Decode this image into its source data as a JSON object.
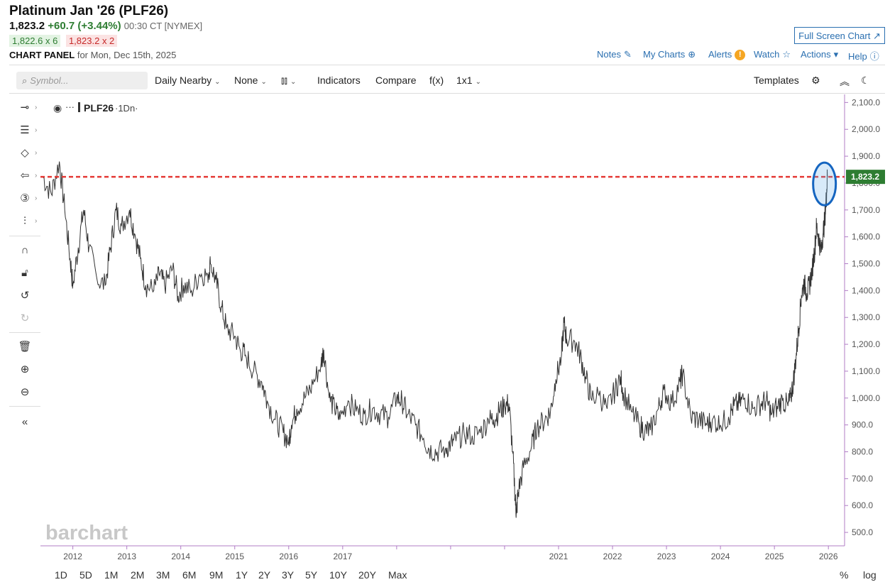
{
  "header": {
    "title": "Platinum Jan '26 (PLF26)",
    "last": "1,823.2",
    "change": "+60.7 (+3.44%)",
    "time": "00:30 CT [NYMEX]",
    "bid": "1,822.6 x 6",
    "ask": "1,823.2 x 2",
    "panel_label": "CHART PANEL",
    "panel_date": "for Mon, Dec 15th, 2025",
    "fullscreen_label": "Full Screen Chart"
  },
  "topnav": {
    "notes": "Notes",
    "mycharts": "My Charts",
    "alerts": "Alerts",
    "alert_badge": "!",
    "watch": "Watch",
    "actions": "Actions",
    "help": "Help"
  },
  "toolbar": {
    "search_placeholder": "Symbol...",
    "period": "Daily Nearby",
    "overlay": "None",
    "indicators": "Indicators",
    "compare": "Compare",
    "fx": "f(x)",
    "layout": "1x1",
    "templates": "Templates"
  },
  "legend": {
    "symbol": "PLF26",
    "interval": "·1Dn·"
  },
  "watermark": "barchart",
  "ranges": [
    "1D",
    "5D",
    "1M",
    "2M",
    "3M",
    "6M",
    "9M",
    "1Y",
    "2Y",
    "3Y",
    "5Y",
    "10Y",
    "20Y",
    "Max"
  ],
  "scale_opts": {
    "percent": "%",
    "log": "log"
  },
  "colors": {
    "accent": "#2a6fb0",
    "up": "#2e7d32",
    "down": "#c62828",
    "price_line": "#e53935",
    "highlight": "#1565c0",
    "series": "#333333"
  },
  "chart_data": {
    "type": "line",
    "title": "",
    "xlabel": "",
    "ylabel": "",
    "x_ticks": [
      "2012",
      "2013",
      "2014",
      "2015",
      "2016",
      "2017",
      "",
      "",
      "",
      "2021",
      "2022",
      "2023",
      "2024",
      "2025",
      "2026"
    ],
    "y_ticks": [
      "2,100.0",
      "2,000.0",
      "1,900.0",
      "1,800.0",
      "1,700.0",
      "1,600.0",
      "1,500.0",
      "1,400.0",
      "1,300.0",
      "1,200.0",
      "1,100.0",
      "1,000.0",
      "900.0",
      "800.0",
      "700.0",
      "600.0",
      "500.0"
    ],
    "ylim": [
      450,
      2130
    ],
    "xlim": [
      2011.4,
      2026.3
    ],
    "last_price": 1823.2,
    "last_price_label": "1,823.2",
    "series": [
      {
        "name": "PLF26",
        "points": [
          [
            2011.45,
            1820
          ],
          [
            2011.6,
            1760
          ],
          [
            2011.75,
            1880
          ],
          [
            2011.85,
            1700
          ],
          [
            2011.95,
            1520
          ],
          [
            2012.0,
            1420
          ],
          [
            2012.1,
            1560
          ],
          [
            2012.2,
            1700
          ],
          [
            2012.3,
            1560
          ],
          [
            2012.45,
            1440
          ],
          [
            2012.6,
            1420
          ],
          [
            2012.7,
            1560
          ],
          [
            2012.8,
            1700
          ],
          [
            2012.9,
            1640
          ],
          [
            2013.05,
            1700
          ],
          [
            2013.15,
            1610
          ],
          [
            2013.25,
            1520
          ],
          [
            2013.35,
            1420
          ],
          [
            2013.5,
            1400
          ],
          [
            2013.6,
            1460
          ],
          [
            2013.7,
            1420
          ],
          [
            2013.85,
            1480
          ],
          [
            2013.95,
            1380
          ],
          [
            2014.05,
            1420
          ],
          [
            2014.2,
            1400
          ],
          [
            2014.35,
            1460
          ],
          [
            2014.5,
            1460
          ],
          [
            2014.55,
            1500
          ],
          [
            2014.65,
            1440
          ],
          [
            2014.75,
            1340
          ],
          [
            2014.85,
            1260
          ],
          [
            2015.0,
            1230
          ],
          [
            2015.1,
            1180
          ],
          [
            2015.2,
            1160
          ],
          [
            2015.35,
            1100
          ],
          [
            2015.5,
            1060
          ],
          [
            2015.6,
            990
          ],
          [
            2015.75,
            920
          ],
          [
            2015.9,
            870
          ],
          [
            2016.0,
            840
          ],
          [
            2016.05,
            900
          ],
          [
            2016.15,
            960
          ],
          [
            2016.3,
            1000
          ],
          [
            2016.45,
            1050
          ],
          [
            2016.6,
            1130
          ],
          [
            2016.65,
            1180
          ],
          [
            2016.75,
            1000
          ],
          [
            2016.85,
            960
          ],
          [
            2016.95,
            920
          ],
          [
            2017.1,
            990
          ],
          [
            2017.25,
            950
          ],
          [
            2017.4,
            940
          ],
          [
            2017.55,
            960
          ],
          [
            2017.7,
            940
          ],
          [
            2017.85,
            930
          ],
          [
            2018.0,
            1000
          ],
          [
            2018.1,
            990
          ],
          [
            2018.2,
            940
          ],
          [
            2018.35,
            900
          ],
          [
            2018.5,
            850
          ],
          [
            2018.6,
            810
          ],
          [
            2018.75,
            800
          ],
          [
            2018.9,
            810
          ],
          [
            2019.0,
            830
          ],
          [
            2019.1,
            840
          ],
          [
            2019.25,
            870
          ],
          [
            2019.4,
            860
          ],
          [
            2019.55,
            870
          ],
          [
            2019.7,
            920
          ],
          [
            2019.8,
            920
          ],
          [
            2019.9,
            950
          ],
          [
            2020.0,
            970
          ],
          [
            2020.08,
            980
          ],
          [
            2020.15,
            800
          ],
          [
            2020.2,
            620
          ],
          [
            2020.22,
            570
          ],
          [
            2020.25,
            650
          ],
          [
            2020.35,
            740
          ],
          [
            2020.5,
            820
          ],
          [
            2020.6,
            890
          ],
          [
            2020.75,
            920
          ],
          [
            2020.85,
            950
          ],
          [
            2020.95,
            1070
          ],
          [
            2021.05,
            1150
          ],
          [
            2021.1,
            1280
          ],
          [
            2021.15,
            1220
          ],
          [
            2021.3,
            1210
          ],
          [
            2021.4,
            1160
          ],
          [
            2021.5,
            1080
          ],
          [
            2021.6,
            1000
          ],
          [
            2021.75,
            1010
          ],
          [
            2021.9,
            960
          ],
          [
            2022.05,
            1030
          ],
          [
            2022.15,
            1080
          ],
          [
            2022.2,
            1020
          ],
          [
            2022.35,
            950
          ],
          [
            2022.5,
            900
          ],
          [
            2022.6,
            880
          ],
          [
            2022.7,
            880
          ],
          [
            2022.85,
            960
          ],
          [
            2022.95,
            1030
          ],
          [
            2023.1,
            980
          ],
          [
            2023.25,
            1060
          ],
          [
            2023.3,
            1090
          ],
          [
            2023.45,
            930
          ],
          [
            2023.6,
            920
          ],
          [
            2023.75,
            900
          ],
          [
            2023.85,
            920
          ],
          [
            2024.0,
            900
          ],
          [
            2024.15,
            930
          ],
          [
            2024.25,
            970
          ],
          [
            2024.35,
            980
          ],
          [
            2024.45,
            1000
          ],
          [
            2024.6,
            960
          ],
          [
            2024.75,
            980
          ],
          [
            2024.85,
            990
          ],
          [
            2024.95,
            940
          ],
          [
            2025.05,
            970
          ],
          [
            2025.15,
            990
          ],
          [
            2025.25,
            970
          ],
          [
            2025.3,
            1000
          ],
          [
            2025.35,
            1060
          ],
          [
            2025.4,
            1150
          ],
          [
            2025.45,
            1260
          ],
          [
            2025.5,
            1380
          ],
          [
            2025.55,
            1430
          ],
          [
            2025.6,
            1390
          ],
          [
            2025.65,
            1420
          ],
          [
            2025.7,
            1480
          ],
          [
            2025.75,
            1560
          ],
          [
            2025.78,
            1640
          ],
          [
            2025.82,
            1600
          ],
          [
            2025.86,
            1540
          ],
          [
            2025.9,
            1610
          ],
          [
            2025.93,
            1660
          ],
          [
            2025.96,
            1740
          ],
          [
            2025.98,
            1823.2
          ]
        ]
      }
    ]
  }
}
